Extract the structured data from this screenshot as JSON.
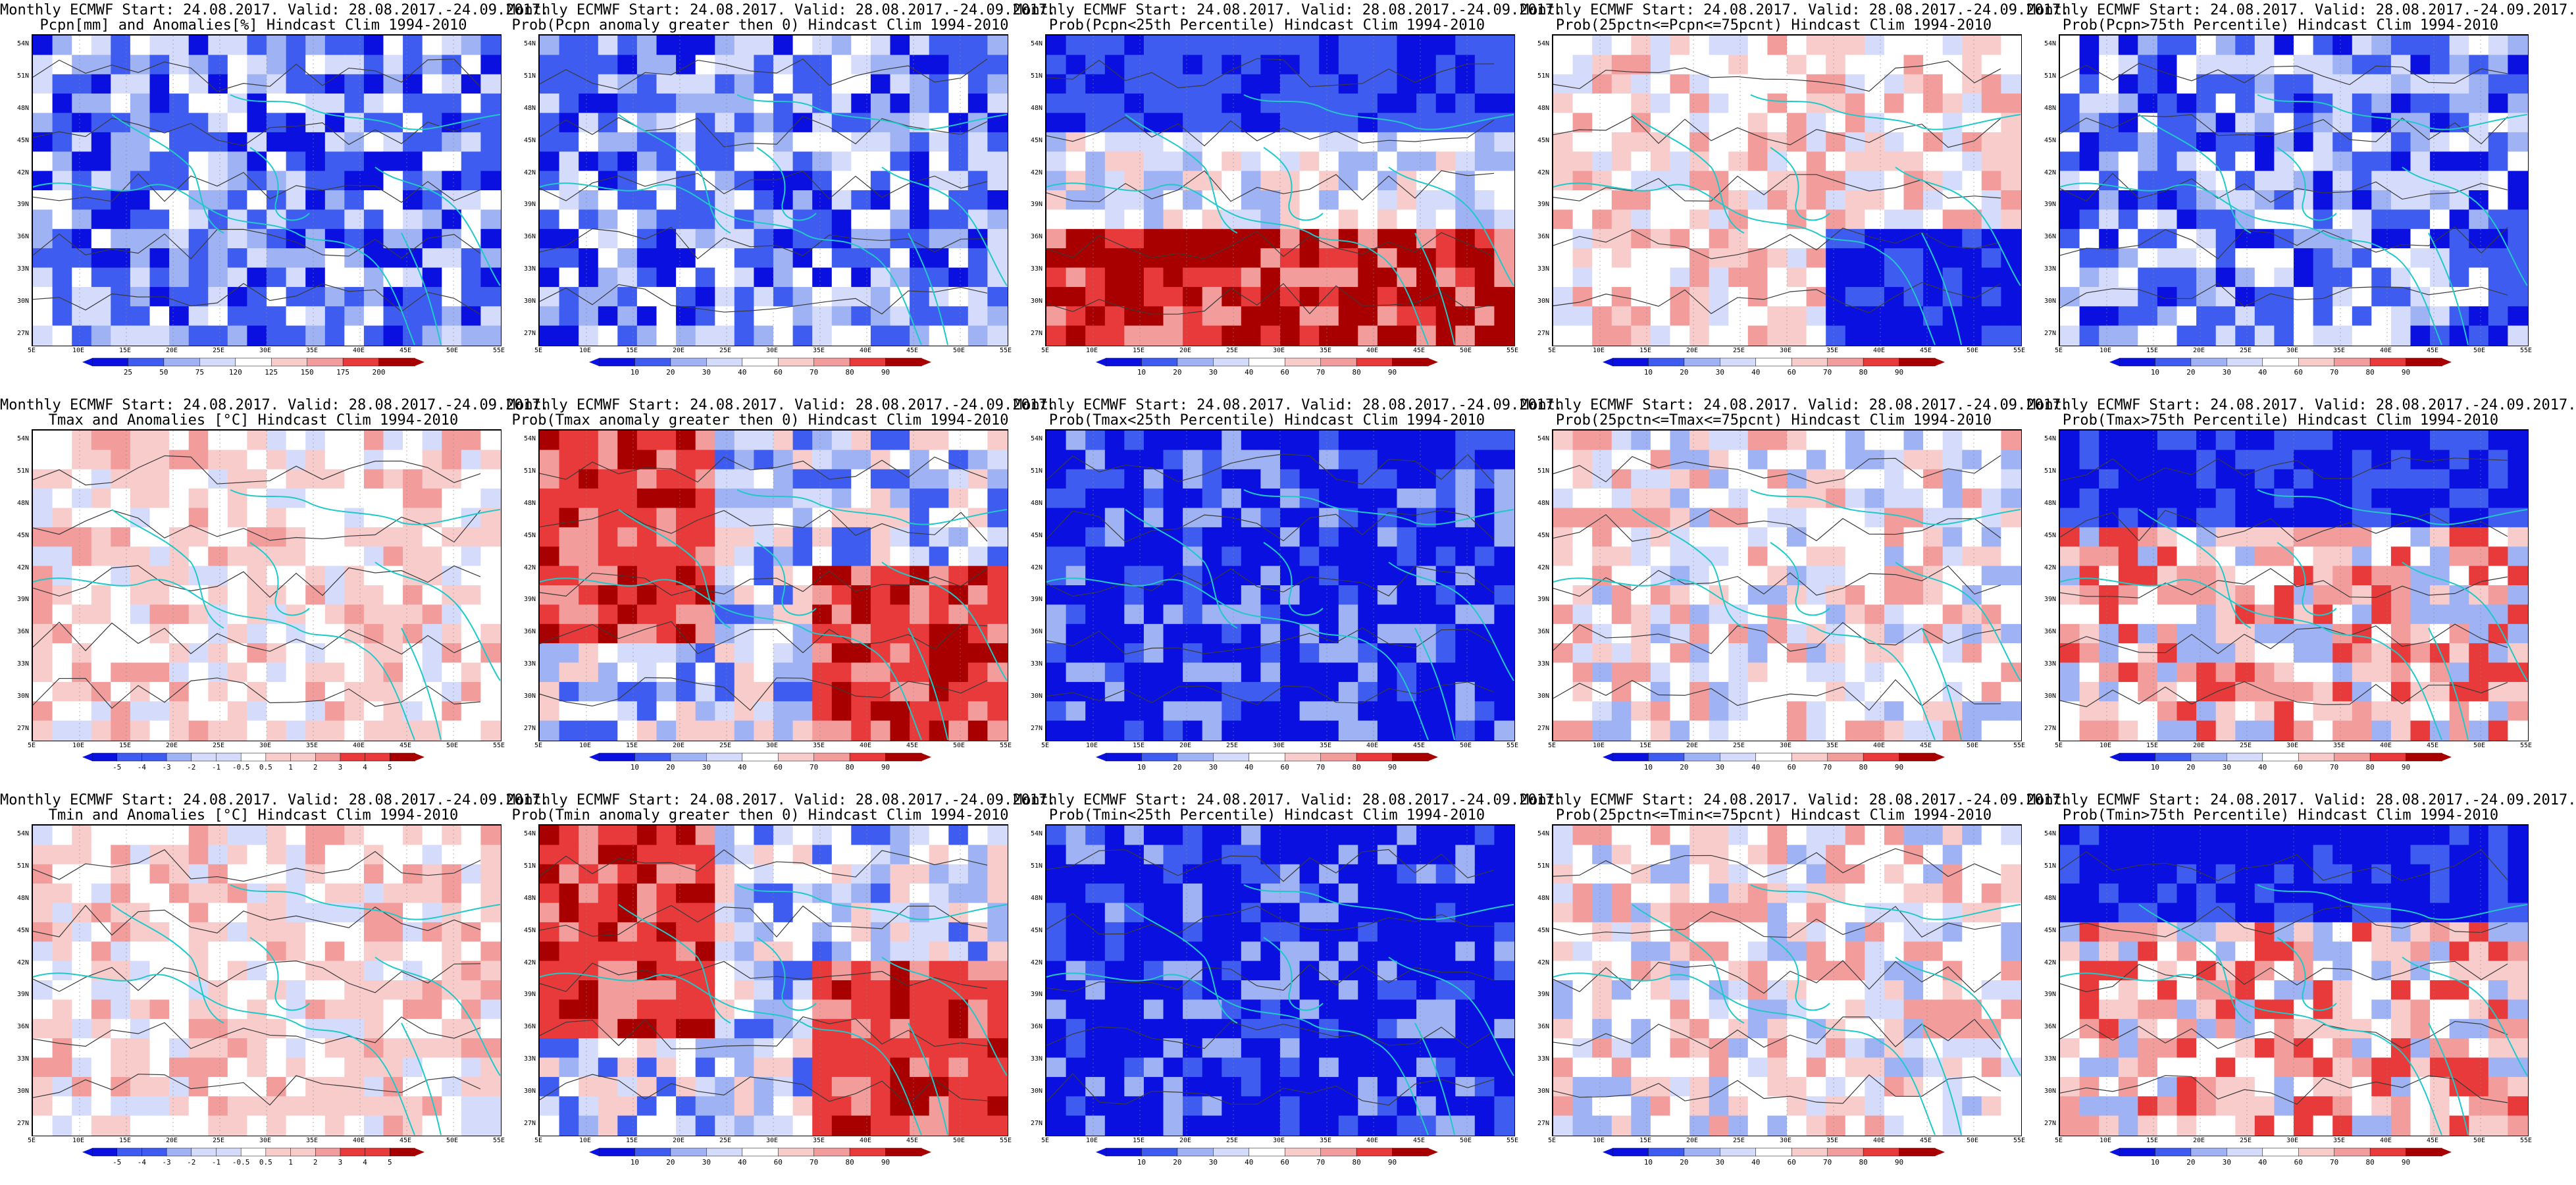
{
  "colors": {
    "deep_blue": "#0a10e0",
    "blue": "#3f5cf0",
    "light_blue": "#9fb2f4",
    "pale_blue": "#d5dcfb",
    "white": "#ffffff",
    "pale_red": "#f9cccc",
    "light_red": "#f29c9c",
    "red": "#e83a3a",
    "dark_red": "#a80000",
    "coast": "#1fc9c9",
    "contour": "#3a3a3a"
  },
  "axes": {
    "lat_labels": [
      "54N",
      "51N",
      "48N",
      "45N",
      "42N",
      "39N",
      "36N",
      "33N",
      "30N",
      "27N"
    ],
    "lon_labels": [
      "5E",
      "10E",
      "15E",
      "20E",
      "25E",
      "30E",
      "35E",
      "40E",
      "45E",
      "50E",
      "55E"
    ]
  },
  "colorbars": {
    "pcpn_anom": [
      "25",
      "50",
      "75",
      "120",
      "125",
      "150",
      "175",
      "200"
    ],
    "temp_anom": [
      "-5",
      "-4",
      "-3",
      "-2",
      "-1",
      "-0.5",
      "0.5",
      "1",
      "2",
      "3",
      "4",
      "5"
    ],
    "prob": [
      "10",
      "20",
      "30",
      "40",
      "60",
      "70",
      "80",
      "90"
    ]
  },
  "panels": [
    {
      "title1": "Monthly ECMWF Start: 24.08.2017. Valid: 28.08.2017.-24.09.2017.",
      "title2": "Pcpn[mm] and Anomalies[%] Hindcast Clim 1994-2010",
      "colorbar": "pcpn_anom",
      "base": "blue",
      "seed": 1
    },
    {
      "title1": "Monthly ECMWF Start: 24.08.2017. Valid: 28.08.2017.-24.09.2017.",
      "title2": "Prob(Pcpn anomaly greater then 0) Hindcast Clim 1994-2010",
      "colorbar": "prob",
      "base": "blue",
      "seed": 2
    },
    {
      "title1": "Monthly ECMWF Start: 24.08.2017. Valid: 28.08.2017.-24.09.2017.",
      "title2": "Prob(Pcpn<25th Percentile) Hindcast Clim 1994-2010",
      "colorbar": "prob",
      "base": "mixed_red_south",
      "seed": 3
    },
    {
      "title1": "Monthly ECMWF Start: 24.08.2017. Valid: 28.08.2017.-24.09.2017.",
      "title2": "Prob(25pctn<=Pcpn<=75pcnt) Hindcast Clim 1994-2010",
      "colorbar": "prob",
      "base": "mixed_blue_south",
      "seed": 4
    },
    {
      "title1": "Monthly ECMWF Start: 24.08.2017. Valid: 28.08.2017.-24.09.2017.",
      "title2": "Prob(Pcpn>75th Percentile) Hindcast Clim 1994-2010",
      "colorbar": "prob",
      "base": "blue",
      "seed": 5
    },
    {
      "title1": "Monthly ECMWF Start: 24.08.2017. Valid: 28.08.2017.-24.09.2017.",
      "title2": "Tmax and Anomalies [°C] Hindcast Clim 1994-2010",
      "colorbar": "temp_anom",
      "base": "pale_red",
      "seed": 6
    },
    {
      "title1": "Monthly ECMWF Start: 24.08.2017. Valid: 28.08.2017.-24.09.2017.",
      "title2": "Prob(Tmax anomaly greater then 0) Hindcast Clim 1994-2010",
      "colorbar": "prob",
      "base": "red",
      "seed": 7
    },
    {
      "title1": "Monthly ECMWF Start: 24.08.2017. Valid: 28.08.2017.-24.09.2017.",
      "title2": "Prob(Tmax<25th Percentile) Hindcast Clim 1994-2010",
      "colorbar": "prob",
      "base": "deep_blue",
      "seed": 8
    },
    {
      "title1": "Monthly ECMWF Start: 24.08.2017. Valid: 28.08.2017.-24.09.2017.",
      "title2": "Prob(25pctn<=Tmax<=75pcnt) Hindcast Clim 1994-2010",
      "colorbar": "prob",
      "base": "mixed",
      "seed": 9
    },
    {
      "title1": "Monthly ECMWF Start: 24.08.2017. Valid: 28.08.2017.-24.09.2017.",
      "title2": "Prob(Tmax>75th Percentile) Hindcast Clim 1994-2010",
      "colorbar": "prob",
      "base": "mixed_blue_north",
      "seed": 10
    },
    {
      "title1": "Monthly ECMWF Start: 24.08.2017. Valid: 28.08.2017.-24.09.2017.",
      "title2": "Tmin and Anomalies [°C] Hindcast Clim 1994-2010",
      "colorbar": "temp_anom",
      "base": "pale_red",
      "seed": 11
    },
    {
      "title1": "Monthly ECMWF Start: 24.08.2017. Valid: 28.08.2017.-24.09.2017.",
      "title2": "Prob(Tmin anomaly greater then 0) Hindcast Clim 1994-2010",
      "colorbar": "prob",
      "base": "red",
      "seed": 12
    },
    {
      "title1": "Monthly ECMWF Start: 24.08.2017. Valid: 28.08.2017.-24.09.2017.",
      "title2": "Prob(Tmin<25th Percentile) Hindcast Clim 1994-2010",
      "colorbar": "prob",
      "base": "deep_blue",
      "seed": 13
    },
    {
      "title1": "Monthly ECMWF Start: 24.08.2017. Valid: 28.08.2017.-24.09.2017.",
      "title2": "Prob(25pctn<=Tmin<=75pcnt) Hindcast Clim 1994-2010",
      "colorbar": "prob",
      "base": "mixed",
      "seed": 14
    },
    {
      "title1": "Monthly ECMWF Start: 24.08.2017. Valid: 28.08.2017.-24.09.2017.",
      "title2": "Prob(Tmin>75th Percentile) Hindcast Clim 1994-2010",
      "colorbar": "prob",
      "base": "mixed_blue_north",
      "seed": 15
    }
  ]
}
